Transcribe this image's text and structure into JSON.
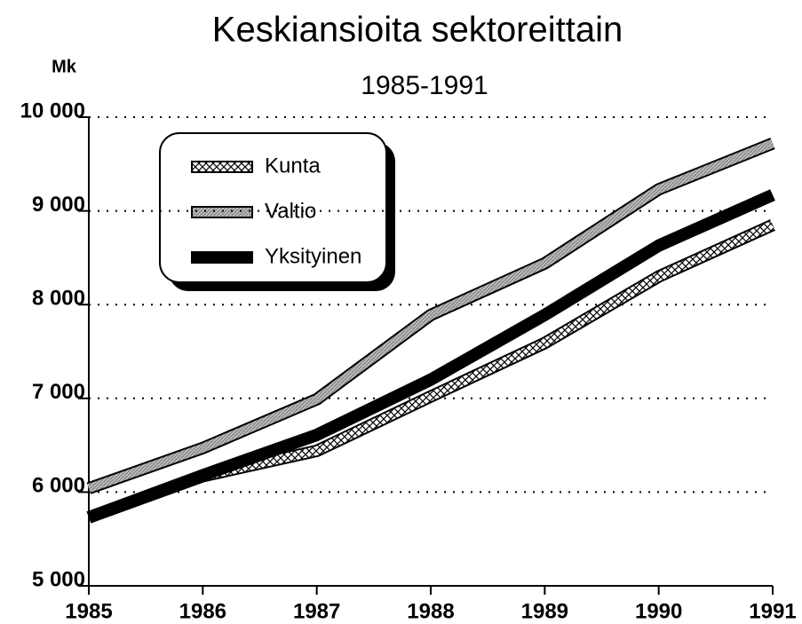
{
  "chart_data": {
    "type": "line",
    "title": "Keskiansioita sektoreittain",
    "subtitle": "1985-1991",
    "y_label": "Mk",
    "x": [
      1985,
      1986,
      1987,
      1988,
      1989,
      1990,
      1991
    ],
    "series": [
      {
        "name": "Kunta",
        "color": "#ffffff",
        "values": [
          5730,
          6170,
          6440,
          7020,
          7590,
          8300,
          8850
        ]
      },
      {
        "name": "Valtio",
        "color": "#aaaaaa",
        "values": [
          6040,
          6470,
          6990,
          7890,
          8440,
          9230,
          9720
        ]
      },
      {
        "name": "Yksityinen",
        "color": "#000000",
        "values": [
          5730,
          6180,
          6610,
          7200,
          7890,
          8630,
          9170
        ]
      }
    ],
    "xlim": [
      1985,
      1991
    ],
    "xticks": [
      1985,
      1986,
      1987,
      1988,
      1989,
      1990,
      1991
    ],
    "ylim": [
      5000,
      10000
    ],
    "yticks": [
      {
        "value": 5000,
        "label": "5 000"
      },
      {
        "value": 6000,
        "label": "6 000"
      },
      {
        "value": 7000,
        "label": "7 000"
      },
      {
        "value": 8000,
        "label": "8 000"
      },
      {
        "value": 9000,
        "label": "9 000"
      },
      {
        "value": 10000,
        "label": "10 000"
      }
    ],
    "grid": true,
    "legend": "upper left"
  }
}
